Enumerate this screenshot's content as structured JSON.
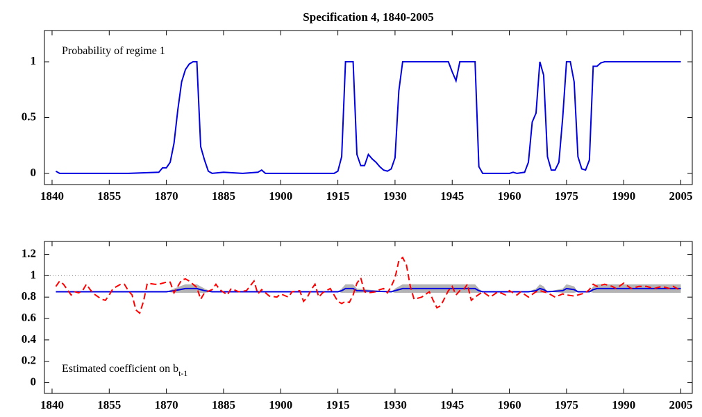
{
  "chart_data": [
    {
      "type": "line",
      "title": "Specification 4, 1840-2005",
      "annotation": "Probability of regime 1",
      "xlim": [
        1838,
        2008
      ],
      "ylim": [
        -0.1,
        1.28
      ],
      "xticks": [
        1840,
        1855,
        1870,
        1885,
        1900,
        1915,
        1930,
        1945,
        1960,
        1975,
        1990,
        2005
      ],
      "yticks": [
        0,
        0.5,
        1
      ],
      "series": [
        {
          "color": "#0000e0",
          "x": [
            1841,
            1842,
            1850,
            1860,
            1868,
            1869,
            1870,
            1871,
            1872,
            1873,
            1874,
            1875,
            1876,
            1877,
            1878,
            1879,
            1880,
            1881,
            1882,
            1885,
            1890,
            1894,
            1895,
            1896,
            1900,
            1910,
            1914,
            1915,
            1916,
            1917,
            1919,
            1920,
            1921,
            1922,
            1923,
            1924,
            1925,
            1926,
            1927,
            1928,
            1929,
            1930,
            1931,
            1932,
            1944,
            1945,
            1946,
            1947,
            1951,
            1952,
            1953,
            1960,
            1961,
            1962,
            1964,
            1965,
            1966,
            1967,
            1968,
            1969,
            1970,
            1971,
            1972,
            1973,
            1974,
            1975,
            1976,
            1977,
            1978,
            1979,
            1980,
            1981,
            1982,
            1983,
            1984,
            1985,
            2005
          ],
          "values": [
            0.02,
            0.0,
            0.0,
            0.0,
            0.01,
            0.05,
            0.05,
            0.1,
            0.27,
            0.57,
            0.82,
            0.93,
            0.98,
            1.0,
            1.0,
            0.24,
            0.12,
            0.02,
            0.0,
            0.01,
            0.0,
            0.01,
            0.03,
            0.0,
            0.0,
            0.0,
            0.0,
            0.02,
            0.15,
            1.0,
            1.0,
            0.17,
            0.07,
            0.07,
            0.17,
            0.13,
            0.1,
            0.06,
            0.03,
            0.02,
            0.04,
            0.14,
            0.74,
            1.0,
            1.0,
            0.91,
            0.83,
            1.0,
            1.0,
            0.06,
            0.0,
            0.0,
            0.01,
            0.0,
            0.01,
            0.1,
            0.46,
            0.54,
            1.0,
            0.88,
            0.15,
            0.03,
            0.03,
            0.1,
            0.5,
            1.0,
            1.0,
            0.82,
            0.15,
            0.04,
            0.03,
            0.12,
            0.96,
            0.96,
            0.99,
            1.0,
            1.0
          ]
        }
      ]
    },
    {
      "type": "line",
      "annotation": "Estimated coefficient on b",
      "annotation_subscript": "t-1",
      "xlim": [
        1838,
        2008
      ],
      "ylim": [
        -0.1,
        1.32
      ],
      "xticks": [
        1840,
        1855,
        1870,
        1885,
        1900,
        1915,
        1930,
        1945,
        1960,
        1975,
        1990,
        2005
      ],
      "yticks": [
        0,
        0.2,
        0.4,
        0.6,
        0.8,
        1,
        1.2
      ],
      "hline": 1,
      "band": {
        "color": "#b4b4b4",
        "x": [
          1841,
          1870,
          1872,
          1875,
          1878,
          1880,
          1882,
          1915,
          1916,
          1917,
          1919,
          1920,
          1929,
          1930,
          1932,
          1951,
          1952,
          1953,
          1965,
          1967,
          1968,
          1969,
          1970,
          1974,
          1975,
          1977,
          1978,
          1981,
          1982,
          1983,
          2005
        ],
        "upper": [
          0.85,
          0.85,
          0.88,
          0.92,
          0.92,
          0.88,
          0.85,
          0.85,
          0.88,
          0.92,
          0.92,
          0.88,
          0.85,
          0.88,
          0.92,
          0.92,
          0.88,
          0.85,
          0.85,
          0.88,
          0.92,
          0.9,
          0.85,
          0.88,
          0.92,
          0.9,
          0.85,
          0.85,
          0.9,
          0.92,
          0.92
        ],
        "lower": [
          0.85,
          0.85,
          0.84,
          0.84,
          0.84,
          0.84,
          0.85,
          0.85,
          0.84,
          0.84,
          0.84,
          0.84,
          0.85,
          0.84,
          0.84,
          0.84,
          0.84,
          0.85,
          0.85,
          0.84,
          0.84,
          0.84,
          0.85,
          0.84,
          0.84,
          0.84,
          0.85,
          0.85,
          0.84,
          0.84,
          0.84
        ]
      },
      "series": [
        {
          "color": "#0000e0",
          "x": [
            1841,
            1870,
            1872,
            1875,
            1878,
            1880,
            1882,
            1915,
            1916,
            1917,
            1919,
            1920,
            1929,
            1930,
            1932,
            1951,
            1952,
            1953,
            1965,
            1967,
            1968,
            1969,
            1970,
            1974,
            1975,
            1977,
            1978,
            1981,
            1982,
            1983,
            2005
          ],
          "values": [
            0.85,
            0.85,
            0.86,
            0.88,
            0.88,
            0.86,
            0.85,
            0.85,
            0.86,
            0.88,
            0.88,
            0.86,
            0.85,
            0.86,
            0.88,
            0.88,
            0.86,
            0.85,
            0.85,
            0.86,
            0.88,
            0.87,
            0.85,
            0.86,
            0.88,
            0.87,
            0.85,
            0.85,
            0.87,
            0.88,
            0.88
          ]
        },
        {
          "color": "#ff0000",
          "dash": true,
          "x": [
            1841,
            1842,
            1843,
            1844,
            1845,
            1846,
            1847,
            1848,
            1849,
            1850,
            1851,
            1853,
            1854,
            1855,
            1856,
            1857,
            1858,
            1859,
            1860,
            1861,
            1862,
            1863,
            1864,
            1865,
            1867,
            1868,
            1870,
            1871,
            1872,
            1874,
            1875,
            1876,
            1878,
            1879,
            1880,
            1882,
            1883,
            1884,
            1886,
            1887,
            1889,
            1891,
            1893,
            1894,
            1895,
            1897,
            1899,
            1900,
            1902,
            1903,
            1905,
            1906,
            1907,
            1908,
            1909,
            1910,
            1911,
            1913,
            1914,
            1915,
            1916,
            1917,
            1918,
            1919,
            1920,
            1921,
            1922,
            1923,
            1925,
            1926,
            1927,
            1928,
            1929,
            1930,
            1931,
            1932,
            1933,
            1934,
            1935,
            1937,
            1939,
            1940,
            1941,
            1942,
            1944,
            1945,
            1946,
            1947,
            1948,
            1949,
            1950,
            1951,
            1953,
            1955,
            1957,
            1959,
            1960,
            1962,
            1963,
            1965,
            1967,
            1968,
            1970,
            1972,
            1974,
            1975,
            1977,
            1979,
            1980,
            1981,
            1982,
            1983,
            1985,
            1987,
            1988,
            1990,
            1992,
            1994,
            1996,
            1998,
            2000,
            2002,
            2003,
            2005
          ],
          "values": [
            0.9,
            0.95,
            0.92,
            0.87,
            0.82,
            0.85,
            0.84,
            0.86,
            0.92,
            0.87,
            0.83,
            0.78,
            0.77,
            0.82,
            0.88,
            0.9,
            0.92,
            0.92,
            0.86,
            0.82,
            0.68,
            0.65,
            0.76,
            0.93,
            0.92,
            0.92,
            0.94,
            0.94,
            0.84,
            0.96,
            0.97,
            0.95,
            0.89,
            0.78,
            0.84,
            0.87,
            0.92,
            0.87,
            0.82,
            0.88,
            0.85,
            0.86,
            0.95,
            0.83,
            0.87,
            0.81,
            0.8,
            0.83,
            0.8,
            0.85,
            0.86,
            0.76,
            0.8,
            0.87,
            0.92,
            0.8,
            0.84,
            0.88,
            0.82,
            0.76,
            0.74,
            0.76,
            0.75,
            0.82,
            0.93,
            0.98,
            0.85,
            0.84,
            0.85,
            0.87,
            0.88,
            0.84,
            0.9,
            0.98,
            1.14,
            1.17,
            1.1,
            0.9,
            0.78,
            0.8,
            0.85,
            0.77,
            0.7,
            0.72,
            0.86,
            0.9,
            0.82,
            0.86,
            0.87,
            0.92,
            0.77,
            0.8,
            0.85,
            0.8,
            0.85,
            0.82,
            0.86,
            0.82,
            0.85,
            0.8,
            0.85,
            0.86,
            0.84,
            0.8,
            0.83,
            0.82,
            0.81,
            0.83,
            0.84,
            0.87,
            0.92,
            0.9,
            0.92,
            0.9,
            0.88,
            0.93,
            0.88,
            0.9,
            0.9,
            0.88,
            0.9,
            0.88,
            0.9,
            0.86
          ]
        }
      ]
    }
  ]
}
